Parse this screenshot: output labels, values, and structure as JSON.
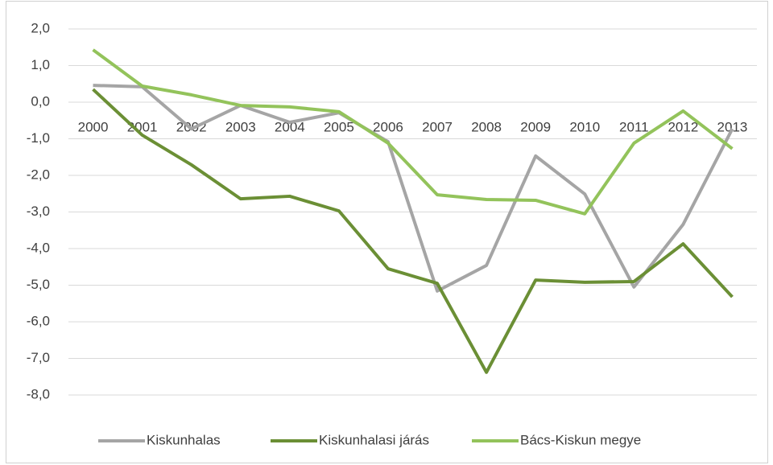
{
  "chart_data": {
    "type": "line",
    "categories": [
      "2000",
      "2001",
      "2002",
      "2003",
      "2004",
      "2005",
      "2006",
      "2007",
      "2008",
      "2009",
      "2010",
      "2011",
      "2012",
      "2013"
    ],
    "series": [
      {
        "name": "Kiskunhalas",
        "color": "#a5a5a5",
        "values": [
          0.46,
          0.42,
          -0.73,
          -0.09,
          -0.55,
          -0.29,
          -1.08,
          -5.16,
          -4.46,
          -1.47,
          -2.51,
          -5.05,
          -3.34,
          -0.73
        ]
      },
      {
        "name": "Kiskunhalasi járás",
        "color": "#6b8f35",
        "values": [
          0.35,
          -0.9,
          -1.71,
          -2.64,
          -2.57,
          -2.97,
          -4.55,
          -4.95,
          -7.38,
          -4.86,
          -4.92,
          -4.9,
          -3.87,
          -5.32
        ]
      },
      {
        "name": "Bács-Kiskun megye",
        "color": "#93c35b",
        "values": [
          1.43,
          0.44,
          0.2,
          -0.09,
          -0.13,
          -0.26,
          -1.12,
          -2.53,
          -2.66,
          -2.68,
          -3.05,
          -1.12,
          -0.24,
          -1.27
        ]
      }
    ],
    "ylim": [
      -8,
      2
    ],
    "yticks": [
      {
        "value": 2,
        "label": "2,0"
      },
      {
        "value": 1,
        "label": "1,0"
      },
      {
        "value": 0,
        "label": "0,0"
      },
      {
        "value": -1,
        "label": "-1,0"
      },
      {
        "value": -2,
        "label": "-2,0"
      },
      {
        "value": -3,
        "label": "-3,0"
      },
      {
        "value": -4,
        "label": "-4,0"
      },
      {
        "value": -5,
        "label": "-5,0"
      },
      {
        "value": -6,
        "label": "-6,0"
      },
      {
        "value": -7,
        "label": "-7,0"
      },
      {
        "value": -8,
        "label": "-8,0"
      }
    ],
    "grid": true,
    "legend": "bottom"
  }
}
